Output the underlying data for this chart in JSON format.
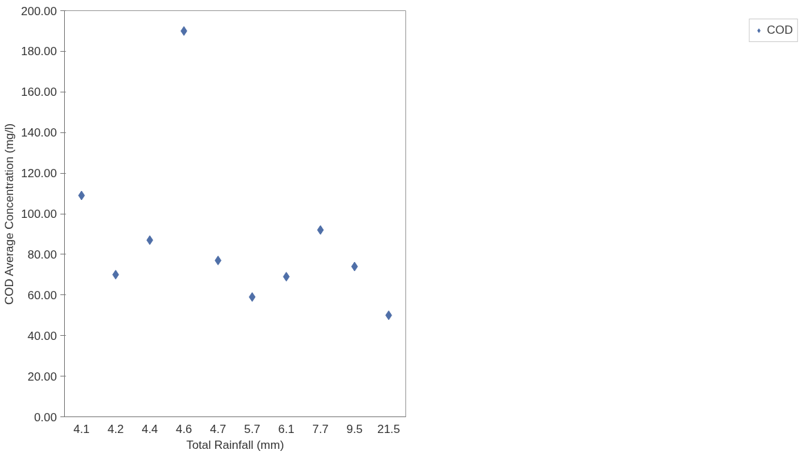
{
  "chart_data": {
    "type": "scatter",
    "xlabel": "Total Rainfall (mm)",
    "ylabel": "COD Average Concentration (mg/l)",
    "categories": [
      "4.1",
      "4.2",
      "4.4",
      "4.6",
      "4.7",
      "5.7",
      "6.1",
      "7.7",
      "9.5",
      "21.5"
    ],
    "series": [
      {
        "name": "COD",
        "color": "#4f6fa8",
        "values": [
          109,
          70,
          87,
          190,
          77,
          59,
          69,
          92,
          74,
          50
        ]
      }
    ],
    "ylim": [
      0,
      200
    ],
    "yticks": [
      {
        "value": 0,
        "label": "0.00"
      },
      {
        "value": 20,
        "label": "20.00"
      },
      {
        "value": 40,
        "label": "40.00"
      },
      {
        "value": 60,
        "label": "60.00"
      },
      {
        "value": 80,
        "label": "80.00"
      },
      {
        "value": 100,
        "label": "100.00"
      },
      {
        "value": 120,
        "label": "120.00"
      },
      {
        "value": 140,
        "label": "140.00"
      },
      {
        "value": 160,
        "label": "160.00"
      },
      {
        "value": 180,
        "label": "180.00"
      },
      {
        "value": 200,
        "label": "200.00"
      }
    ],
    "grid": false,
    "legend": "right",
    "marker": "diamond"
  }
}
